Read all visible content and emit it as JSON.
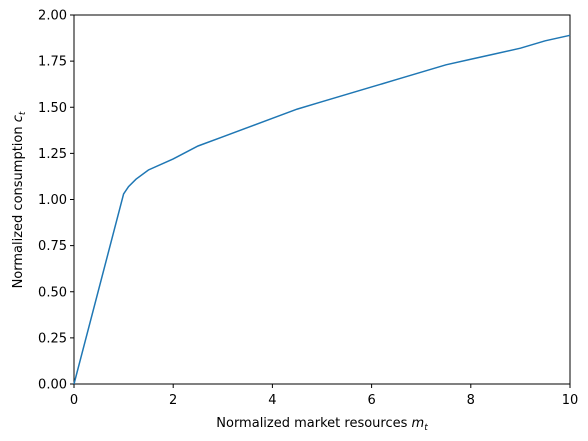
{
  "chart_data": {
    "type": "line",
    "x_label": {
      "text": "Normalized market resources",
      "symbol": "m",
      "subscript": "t"
    },
    "y_label": {
      "text": "Normalized consumption",
      "symbol": "c",
      "subscript": "t"
    },
    "x": [
      0,
      1,
      1.1,
      1.25,
      1.5,
      2,
      2.5,
      3,
      3.5,
      4,
      4.5,
      5,
      5.5,
      6,
      6.5,
      7,
      7.5,
      8,
      8.5,
      9,
      9.5,
      10
    ],
    "series": [
      {
        "color": "#1f77b4",
        "values": [
          0,
          1.03,
          1.07,
          1.11,
          1.16,
          1.22,
          1.29,
          1.34,
          1.39,
          1.44,
          1.49,
          1.53,
          1.57,
          1.61,
          1.65,
          1.69,
          1.73,
          1.76,
          1.79,
          1.82,
          1.86,
          1.89
        ]
      }
    ],
    "xlim": [
      0,
      10
    ],
    "xticks": [
      0,
      2,
      4,
      6,
      8,
      10
    ],
    "ylim": [
      0,
      2
    ],
    "yticks": [
      {
        "value": 0,
        "label": "0.00"
      },
      {
        "value": 0.25,
        "label": "0.25"
      },
      {
        "value": 0.5,
        "label": "0.50"
      },
      {
        "value": 0.75,
        "label": "0.75"
      },
      {
        "value": 1,
        "label": "1.00"
      },
      {
        "value": 1.25,
        "label": "1.25"
      },
      {
        "value": 1.5,
        "label": "1.50"
      },
      {
        "value": 1.75,
        "label": "1.75"
      },
      {
        "value": 2,
        "label": "2.00"
      }
    ],
    "grid": false
  }
}
